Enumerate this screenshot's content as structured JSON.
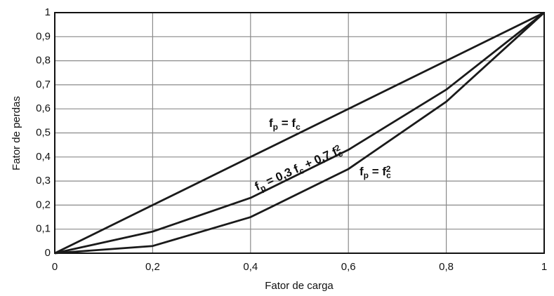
{
  "chart_data": {
    "type": "line",
    "x_label": "Fator de carga",
    "y_label": "Fator de perdas",
    "x": [
      0,
      0.2,
      0.4,
      0.6,
      0.8,
      1
    ],
    "series": [
      {
        "name": "fp = fc",
        "color": "#1a1a1a",
        "values": [
          0,
          0.2,
          0.4,
          0.6,
          0.8,
          1
        ]
      },
      {
        "name": "fp = 0,3 fc + 0,7 fc2",
        "color": "#1a1a1a",
        "values": [
          0,
          0.09,
          0.23,
          0.43,
          0.68,
          1
        ]
      },
      {
        "name": "fp = fc2",
        "color": "#1a1a1a",
        "values": [
          0,
          0.03,
          0.15,
          0.35,
          0.63,
          1
        ]
      }
    ],
    "annotations": [
      {
        "parts": [
          {
            "text": "f"
          },
          {
            "text": "p",
            "sub": true
          },
          {
            "text": " = f"
          },
          {
            "text": "c",
            "sub": true
          }
        ]
      },
      {
        "parts": [
          {
            "text": "f"
          },
          {
            "text": "p",
            "sub": true
          },
          {
            "text": " = 0,3 f"
          },
          {
            "text": "c",
            "sub": true
          },
          {
            "text": " + 0,7 f"
          },
          {
            "text": "c",
            "sub": true
          },
          {
            "text": "2",
            "sup": true
          }
        ]
      },
      {
        "parts": [
          {
            "text": "f"
          },
          {
            "text": "p",
            "sub": true
          },
          {
            "text": " = f"
          },
          {
            "text": "c",
            "sub": true
          },
          {
            "text": "2",
            "sup": true
          }
        ]
      }
    ],
    "xlim": [
      0,
      1
    ],
    "ylim": [
      0,
      1
    ],
    "xticks": [
      0,
      {
        "value": 0.2,
        "label": "0,2"
      },
      {
        "value": 0.4,
        "label": "0,4"
      },
      {
        "value": 0.6,
        "label": "0,6"
      },
      {
        "value": 0.8,
        "label": "0,8"
      },
      1
    ],
    "yticks": [
      0,
      {
        "value": 0.1,
        "label": "0,1"
      },
      {
        "value": 0.2,
        "label": "0,2"
      },
      {
        "value": 0.3,
        "label": "0,3"
      },
      {
        "value": 0.4,
        "label": "0,4"
      },
      {
        "value": 0.5,
        "label": "0,5"
      },
      {
        "value": 0.6,
        "label": "0,6"
      },
      {
        "value": 0.7,
        "label": "0,7"
      },
      {
        "value": 0.8,
        "label": "0,8"
      },
      {
        "value": 0.9,
        "label": "0,9"
      },
      1
    ],
    "grid": true,
    "grid_color": "#8a8a8a"
  }
}
